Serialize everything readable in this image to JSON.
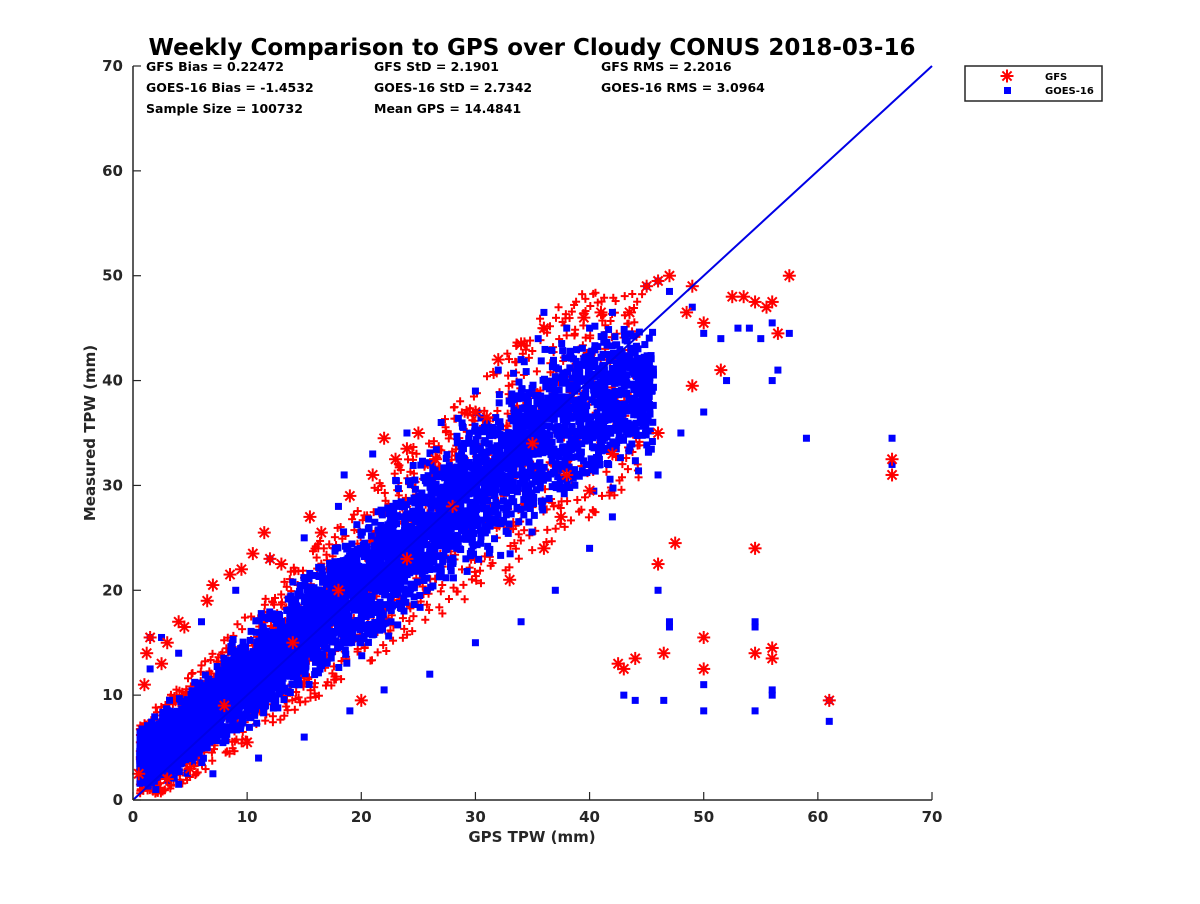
{
  "chart_data": {
    "type": "scatter",
    "title": "Weekly Comparison to GPS over Cloudy CONUS 2018-03-16",
    "xlabel": "GPS TPW (mm)",
    "ylabel": "Measured TPW (mm)",
    "xlim": [
      0,
      70
    ],
    "ylim": [
      0,
      70
    ],
    "x_ticks": [
      "0",
      "10",
      "20",
      "30",
      "40",
      "50",
      "60",
      "70"
    ],
    "y_ticks": [
      "0",
      "10",
      "20",
      "30",
      "40",
      "50",
      "60",
      "70"
    ],
    "grid": false,
    "legend_position": "top-right outside",
    "stats": [
      [
        "GFS Bias = 0.22472",
        "GFS StD = 2.1901",
        "GFS RMS = 2.2016"
      ],
      [
        "GOES-16 Bias = -1.4532",
        "GOES-16 StD = 2.7342",
        "GOES-16 RMS = 3.0964"
      ],
      [
        "Sample Size = 100732",
        "Mean GPS = 14.4841",
        ""
      ]
    ],
    "one_to_one_line": {
      "x": [
        0,
        70
      ],
      "y": [
        0,
        70
      ],
      "color": "#0000e6"
    },
    "series": [
      {
        "name": "GFS",
        "marker": "asterisk",
        "color": "#ff0000",
        "points": [
          [
            1.0,
            11.0
          ],
          [
            1.2,
            14.0
          ],
          [
            1.5,
            15.5
          ],
          [
            2.5,
            13.0
          ],
          [
            3.0,
            15.0
          ],
          [
            4.0,
            17.0
          ],
          [
            4.5,
            16.5
          ],
          [
            6.5,
            19.0
          ],
          [
            7.0,
            20.5
          ],
          [
            8.5,
            21.5
          ],
          [
            9.5,
            22.0
          ],
          [
            10.5,
            23.5
          ],
          [
            11.5,
            25.5
          ],
          [
            12.0,
            23.0
          ],
          [
            13.0,
            22.5
          ],
          [
            15.5,
            27.0
          ],
          [
            16.5,
            25.5
          ],
          [
            19.0,
            29.0
          ],
          [
            21.0,
            31.0
          ],
          [
            22.0,
            34.5
          ],
          [
            23.0,
            32.5
          ],
          [
            24.0,
            33.5
          ],
          [
            25.0,
            35.0
          ],
          [
            26.5,
            32.5
          ],
          [
            30.0,
            37.0
          ],
          [
            31.0,
            36.5
          ],
          [
            32.0,
            42.0
          ],
          [
            34.0,
            43.5
          ],
          [
            36.0,
            45.0
          ],
          [
            39.5,
            46.0
          ],
          [
            41.0,
            46.5
          ],
          [
            43.5,
            46.5
          ],
          [
            45.0,
            49.0
          ],
          [
            46.0,
            49.5
          ],
          [
            47.0,
            50.0
          ],
          [
            49.0,
            49.0
          ],
          [
            48.5,
            46.5
          ],
          [
            50.0,
            45.5
          ],
          [
            52.5,
            48.0
          ],
          [
            53.5,
            48.0
          ],
          [
            54.5,
            47.5
          ],
          [
            55.5,
            47.0
          ],
          [
            56.0,
            47.5
          ],
          [
            57.5,
            50.0
          ],
          [
            56.5,
            44.5
          ],
          [
            51.5,
            41.0
          ],
          [
            49.0,
            39.5
          ],
          [
            46.0,
            35.0
          ],
          [
            42.0,
            33.0
          ],
          [
            38.0,
            31.0
          ],
          [
            37.5,
            27.0
          ],
          [
            36.0,
            24.0
          ],
          [
            33.0,
            21.0
          ],
          [
            40.0,
            29.5
          ],
          [
            47.5,
            24.5
          ],
          [
            46.0,
            22.5
          ],
          [
            54.5,
            24.0
          ],
          [
            42.5,
            13.0
          ],
          [
            43.0,
            12.5
          ],
          [
            44.0,
            13.5
          ],
          [
            46.5,
            14.0
          ],
          [
            50.0,
            15.5
          ],
          [
            50.0,
            12.5
          ],
          [
            54.5,
            14.0
          ],
          [
            56.0,
            14.5
          ],
          [
            56.0,
            13.5
          ],
          [
            61.0,
            9.5
          ],
          [
            66.5,
            31.0
          ],
          [
            66.5,
            32.5
          ],
          [
            20.0,
            9.5
          ],
          [
            10.0,
            5.5
          ],
          [
            5.0,
            3.0
          ],
          [
            3.0,
            2.0
          ],
          [
            0.5,
            2.5
          ],
          [
            18.0,
            20.0
          ],
          [
            24.0,
            23.0
          ],
          [
            28.0,
            28.0
          ],
          [
            35.0,
            34.0
          ],
          [
            14.0,
            15.0
          ],
          [
            8.0,
            9.0
          ]
        ]
      },
      {
        "name": "GOES-16",
        "marker": "square",
        "color": "#0000ff",
        "points": [
          [
            1.5,
            15.5
          ],
          [
            2.5,
            15.5
          ],
          [
            1.5,
            12.5
          ],
          [
            4.0,
            14.0
          ],
          [
            6.0,
            17.0
          ],
          [
            9.0,
            20.0
          ],
          [
            12.0,
            23.0
          ],
          [
            15.0,
            25.0
          ],
          [
            18.0,
            28.0
          ],
          [
            18.5,
            31.0
          ],
          [
            21.0,
            33.0
          ],
          [
            24.0,
            35.0
          ],
          [
            27.0,
            36.0
          ],
          [
            30.0,
            39.0
          ],
          [
            32.0,
            41.0
          ],
          [
            34.0,
            42.0
          ],
          [
            35.5,
            44.0
          ],
          [
            36.0,
            46.5
          ],
          [
            38.0,
            45.0
          ],
          [
            40.0,
            45.0
          ],
          [
            42.0,
            46.5
          ],
          [
            45.0,
            49.0
          ],
          [
            46.0,
            49.5
          ],
          [
            47.0,
            48.5
          ],
          [
            49.0,
            47.0
          ],
          [
            50.0,
            44.5
          ],
          [
            51.5,
            44.0
          ],
          [
            53.0,
            45.0
          ],
          [
            54.0,
            45.0
          ],
          [
            55.0,
            44.0
          ],
          [
            56.0,
            45.5
          ],
          [
            57.5,
            44.5
          ],
          [
            56.5,
            41.0
          ],
          [
            56.0,
            40.0
          ],
          [
            52.0,
            40.0
          ],
          [
            50.0,
            37.0
          ],
          [
            48.0,
            35.0
          ],
          [
            46.0,
            31.0
          ],
          [
            42.0,
            27.0
          ],
          [
            40.0,
            24.0
          ],
          [
            37.0,
            20.0
          ],
          [
            34.0,
            17.0
          ],
          [
            30.0,
            15.0
          ],
          [
            26.0,
            12.0
          ],
          [
            22.0,
            10.5
          ],
          [
            19.0,
            8.5
          ],
          [
            15.0,
            6.0
          ],
          [
            11.0,
            4.0
          ],
          [
            7.0,
            2.5
          ],
          [
            4.0,
            1.5
          ],
          [
            2.0,
            1.0
          ],
          [
            1.5,
            2.0
          ],
          [
            46.0,
            20.0
          ],
          [
            47.0,
            17.0
          ],
          [
            47.0,
            16.5
          ],
          [
            54.5,
            17.0
          ],
          [
            54.5,
            16.5
          ],
          [
            43.0,
            10.0
          ],
          [
            44.0,
            9.5
          ],
          [
            46.5,
            9.5
          ],
          [
            50.0,
            11.0
          ],
          [
            50.0,
            8.5
          ],
          [
            54.5,
            8.5
          ],
          [
            56.0,
            10.5
          ],
          [
            56.0,
            10.0
          ],
          [
            61.0,
            9.5
          ],
          [
            61.0,
            7.5
          ],
          [
            66.5,
            34.5
          ],
          [
            66.5,
            32.0
          ],
          [
            59.0,
            34.5
          ]
        ]
      }
    ]
  }
}
